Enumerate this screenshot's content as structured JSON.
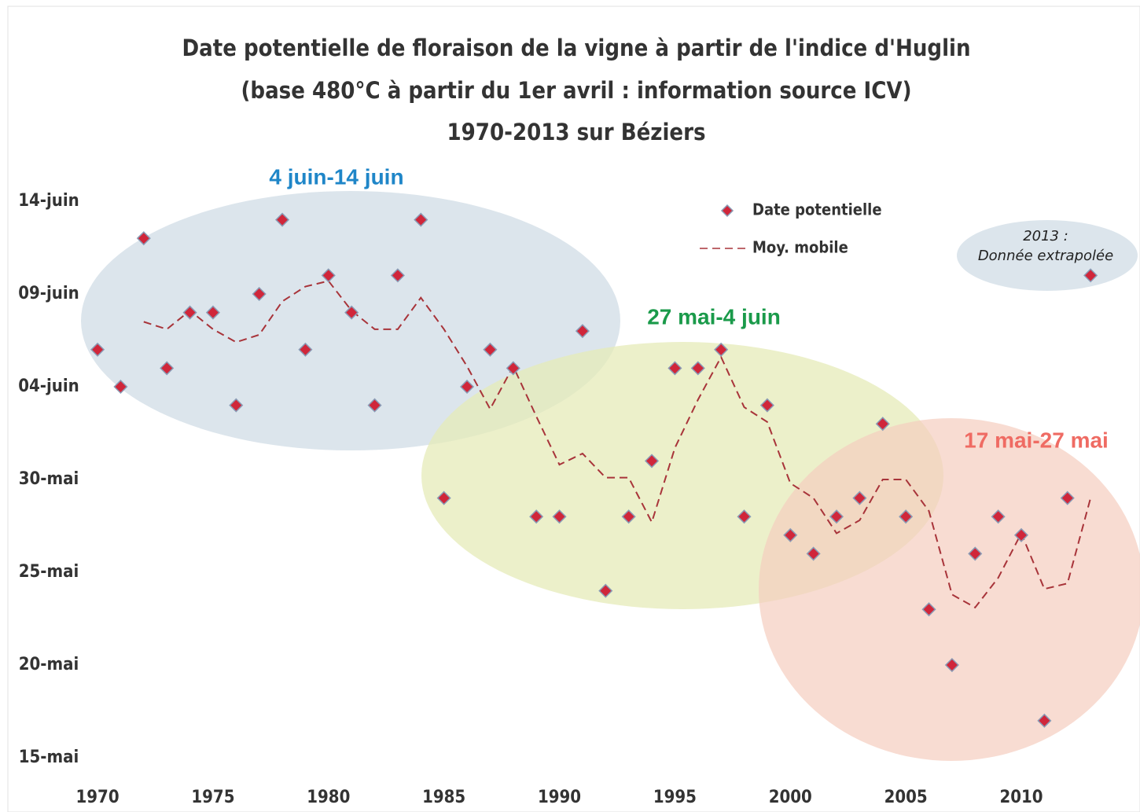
{
  "chart_data": {
    "type": "scatter",
    "title": [
      "Date potentielle de floraison de la vigne à partir de l'indice d'Huglin",
      "(base 480°C à partir du 1er avril : information source ICV)",
      "1970-2013 sur Béziers"
    ],
    "x": [
      1970,
      1971,
      1972,
      1973,
      1974,
      1975,
      1976,
      1977,
      1978,
      1979,
      1980,
      1981,
      1982,
      1983,
      1984,
      1985,
      1986,
      1987,
      1988,
      1989,
      1990,
      1991,
      1992,
      1993,
      1994,
      1995,
      1996,
      1997,
      1998,
      1999,
      2000,
      2001,
      2002,
      2003,
      2004,
      2005,
      2006,
      2007,
      2008,
      2009,
      2010,
      2011,
      2012,
      2013
    ],
    "series": [
      {
        "name": "Date potentielle",
        "color": "#d0263a",
        "values": [
          157,
          155,
          163,
          156,
          159,
          159,
          154,
          160,
          164,
          157,
          161,
          159,
          154,
          161,
          164,
          149,
          155,
          157,
          156,
          148,
          148,
          158,
          144,
          148,
          151,
          156,
          156,
          157,
          148,
          154,
          147,
          146,
          148,
          149,
          153,
          148,
          143,
          140,
          146,
          148,
          147,
          137,
          149,
          161
        ]
      },
      {
        "name": "Moy. mobile",
        "color": "#a8343a",
        "values": [
          null,
          null,
          158.5,
          158.1,
          159.1,
          158.1,
          157.4,
          157.8,
          159.6,
          160.4,
          160.7,
          159.1,
          158.1,
          158.1,
          159.8,
          158.1,
          156.1,
          153.8,
          156.1,
          153.4,
          150.8,
          151.4,
          150.1,
          150.1,
          147.7,
          151.7,
          154.3,
          156.6,
          153.9,
          153.1,
          149.8,
          149.0,
          147.1,
          147.8,
          150.0,
          150.0,
          148.3,
          143.8,
          143.1,
          144.7,
          147.1,
          144.1,
          144.4,
          149.0
        ]
      }
    ],
    "xlim": [
      1968.5,
      2014.8
    ],
    "xticks": [
      1970,
      1975,
      1980,
      1985,
      1990,
      1995,
      2000,
      2005,
      2010
    ],
    "ylim": [
      133.9,
      166.1
    ],
    "yticks": [
      {
        "value": 135,
        "label": "15-mai"
      },
      {
        "value": 140,
        "label": "20-mai"
      },
      {
        "value": 145,
        "label": "25-mai"
      },
      {
        "value": 150,
        "label": "30-mai"
      },
      {
        "value": 155,
        "label": "04-juin"
      },
      {
        "value": 160,
        "label": "09-juin"
      },
      {
        "value": 165,
        "label": "14-juin"
      }
    ],
    "annotations": [
      "4 juin-14 juin",
      "27 mai-4 juin",
      "17 mai-27 mai",
      [
        "2013 :",
        "Donnée extrapolée"
      ]
    ]
  }
}
